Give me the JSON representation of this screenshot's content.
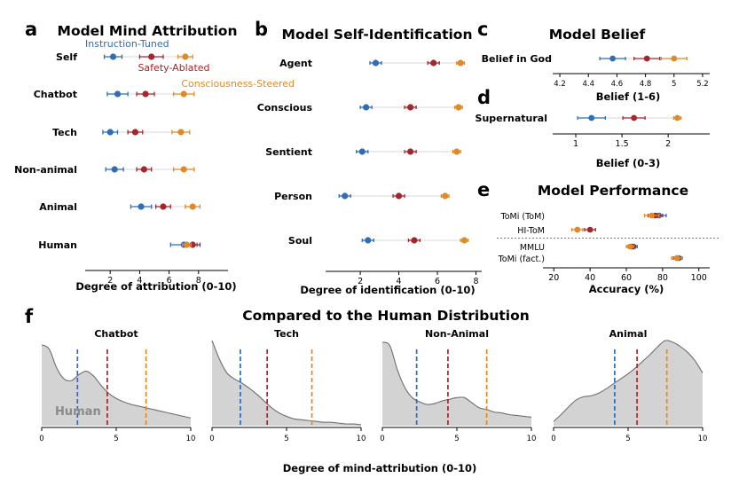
{
  "colors": {
    "instruction": "#2f6db5",
    "safety": "#a3262c",
    "consciousness": "#e08a25",
    "density_fill": "#d3d3d3",
    "density_line": "#6f6f6f",
    "bar": "#c9c9c9"
  },
  "legend": {
    "instruction": "Instruction-Tuned",
    "safety": "Safety-Ablated",
    "consciousness": "Consciousness-Steered"
  },
  "chart_data": [
    {
      "id": "a",
      "panel_label": "a",
      "type": "scatter",
      "title": "Model Mind Attribution",
      "xlabel": "Degree of attribution (0-10)",
      "xlim": [
        0.3,
        10
      ],
      "xticks": [
        2,
        4,
        6,
        8
      ],
      "categories": [
        "Self",
        "Chatbot",
        "Tech",
        "Non-animal",
        "Animal",
        "Human"
      ],
      "series": [
        {
          "key": "instruction",
          "name": "Instruction-Tuned",
          "values": [
            2.2,
            2.5,
            2.0,
            2.3,
            4.1,
            7.0
          ],
          "ci": [
            0.6,
            0.7,
            0.5,
            0.6,
            0.7,
            0.9
          ]
        },
        {
          "key": "safety",
          "name": "Safety-Ablated",
          "values": [
            4.8,
            4.4,
            3.7,
            4.3,
            5.6,
            7.6
          ],
          "ci": [
            0.8,
            0.6,
            0.5,
            0.5,
            0.5,
            0.5
          ]
        },
        {
          "key": "consciousness",
          "name": "Consciousness-Steered",
          "values": [
            7.1,
            7.0,
            6.8,
            7.0,
            7.6,
            7.2
          ],
          "ci": [
            0.5,
            0.7,
            0.6,
            0.7,
            0.5,
            0.3
          ]
        }
      ]
    },
    {
      "id": "b",
      "panel_label": "b",
      "type": "scatter",
      "title": "Model Self-Identification",
      "xlabel": "Degree of identification (0-10)",
      "xlim": [
        0.2,
        8.3
      ],
      "xticks": [
        2,
        4,
        6,
        8
      ],
      "categories": [
        "Agent",
        "Conscious",
        "Sentient",
        "Person",
        "Soul"
      ],
      "series": [
        {
          "key": "instruction",
          "name": "Instruction-Tuned",
          "values": [
            2.8,
            2.3,
            2.1,
            1.2,
            2.4
          ],
          "ci": [
            0.3,
            0.3,
            0.3,
            0.3,
            0.3
          ]
        },
        {
          "key": "safety",
          "name": "Safety-Ablated",
          "values": [
            5.8,
            4.6,
            4.6,
            4.0,
            4.8
          ],
          "ci": [
            0.3,
            0.3,
            0.3,
            0.3,
            0.3
          ]
        },
        {
          "key": "consciousness",
          "name": "Consciousness-Steered",
          "values": [
            7.2,
            7.1,
            7.0,
            6.4,
            7.4
          ],
          "ci": [
            0.2,
            0.2,
            0.2,
            0.2,
            0.2
          ]
        }
      ]
    },
    {
      "id": "c",
      "panel_label": "c",
      "type": "scatter",
      "title": "Model Belief",
      "xlabel": "Belief (1-6)",
      "xlim": [
        4.15,
        5.25
      ],
      "xticks": [
        4.2,
        4.4,
        4.6,
        4.8,
        5.0,
        5.2
      ],
      "categories": [
        "Belief in God"
      ],
      "series": [
        {
          "key": "instruction",
          "name": "Instruction-Tuned",
          "values": [
            4.57
          ],
          "ci": [
            0.09
          ]
        },
        {
          "key": "safety",
          "name": "Safety-Ablated",
          "values": [
            4.81
          ],
          "ci": [
            0.09
          ]
        },
        {
          "key": "consciousness",
          "name": "Consciousness-Steered",
          "values": [
            5.0
          ],
          "ci": [
            0.09
          ]
        }
      ]
    },
    {
      "id": "d",
      "panel_label": "d",
      "type": "scatter",
      "title": "",
      "xlabel": "Belief (0-3)",
      "xlim": [
        0.75,
        2.45
      ],
      "xticks": [
        1,
        1.5,
        2
      ],
      "categories": [
        "Supernatural"
      ],
      "series": [
        {
          "key": "instruction",
          "name": "Instruction-Tuned",
          "values": [
            1.17
          ],
          "ci": [
            0.15
          ]
        },
        {
          "key": "safety",
          "name": "Safety-Ablated",
          "values": [
            1.63
          ],
          "ci": [
            0.12
          ]
        },
        {
          "key": "consciousness",
          "name": "Consciousness-Steered",
          "values": [
            2.1
          ],
          "ci": [
            0.04
          ]
        }
      ]
    },
    {
      "id": "e",
      "panel_label": "e",
      "type": "scatter",
      "title": "Model Performance",
      "xlabel": "Accuracy (%)",
      "xlim": [
        14,
        106
      ],
      "xticks": [
        20,
        40,
        60,
        80,
        100
      ],
      "categories": [
        "ToMi (ToM)",
        "HI-ToM",
        "MMLU",
        "ToMi (fact.)"
      ],
      "separator_after": 1,
      "series": [
        {
          "key": "instruction",
          "name": "Instruction-Tuned",
          "values": [
            78,
            33,
            64,
            89
          ],
          "ci": [
            4,
            0,
            2,
            2
          ]
        },
        {
          "key": "safety",
          "name": "Safety-Ablated",
          "values": [
            76,
            40,
            63,
            88
          ],
          "ci": [
            4,
            3,
            2,
            2
          ]
        },
        {
          "key": "consciousness",
          "name": "Consciousness-Steered",
          "values": [
            74,
            33,
            62,
            88
          ],
          "ci": [
            4,
            3,
            2,
            3
          ]
        }
      ]
    },
    {
      "id": "f",
      "panel_label": "f",
      "type": "area",
      "title": "Compared to the Human Distribution",
      "xlabel": "Degree of mind-attribution (0-10)",
      "xlim": [
        0,
        10
      ],
      "xticks": [
        0,
        5,
        10
      ],
      "human_label": "Human",
      "density_x": [
        0,
        0.5,
        1,
        1.5,
        2,
        2.5,
        3,
        3.5,
        4,
        4.5,
        5,
        5.5,
        6,
        6.5,
        7,
        7.5,
        8,
        8.5,
        9,
        9.5,
        10
      ],
      "panels": [
        {
          "title": "Chatbot",
          "density": [
            0.95,
            0.9,
            0.68,
            0.55,
            0.53,
            0.6,
            0.64,
            0.58,
            0.47,
            0.38,
            0.32,
            0.28,
            0.25,
            0.23,
            0.21,
            0.19,
            0.17,
            0.15,
            0.13,
            0.11,
            0.09
          ],
          "lines": {
            "instruction": 2.4,
            "safety": 4.4,
            "consciousness": 7.0
          }
        },
        {
          "title": "Tech",
          "density": [
            1.0,
            0.78,
            0.62,
            0.55,
            0.5,
            0.44,
            0.37,
            0.29,
            0.21,
            0.15,
            0.11,
            0.08,
            0.07,
            0.06,
            0.05,
            0.04,
            0.04,
            0.03,
            0.02,
            0.02,
            0.01
          ],
          "lines": {
            "instruction": 1.9,
            "safety": 3.7,
            "consciousness": 6.7
          }
        },
        {
          "title": "Non-Animal",
          "density": [
            0.98,
            0.94,
            0.66,
            0.45,
            0.33,
            0.28,
            0.25,
            0.26,
            0.29,
            0.31,
            0.33,
            0.33,
            0.27,
            0.21,
            0.19,
            0.16,
            0.15,
            0.13,
            0.12,
            0.11,
            0.1
          ],
          "lines": {
            "instruction": 2.3,
            "safety": 4.4,
            "consciousness": 7.0
          }
        },
        {
          "title": "Animal",
          "density": [
            0.05,
            0.13,
            0.22,
            0.3,
            0.34,
            0.35,
            0.38,
            0.43,
            0.49,
            0.55,
            0.61,
            0.68,
            0.76,
            0.84,
            0.93,
            1.0,
            0.98,
            0.93,
            0.86,
            0.76,
            0.62
          ],
          "lines": {
            "instruction": 4.1,
            "safety": 5.6,
            "consciousness": 7.6
          }
        }
      ]
    }
  ]
}
